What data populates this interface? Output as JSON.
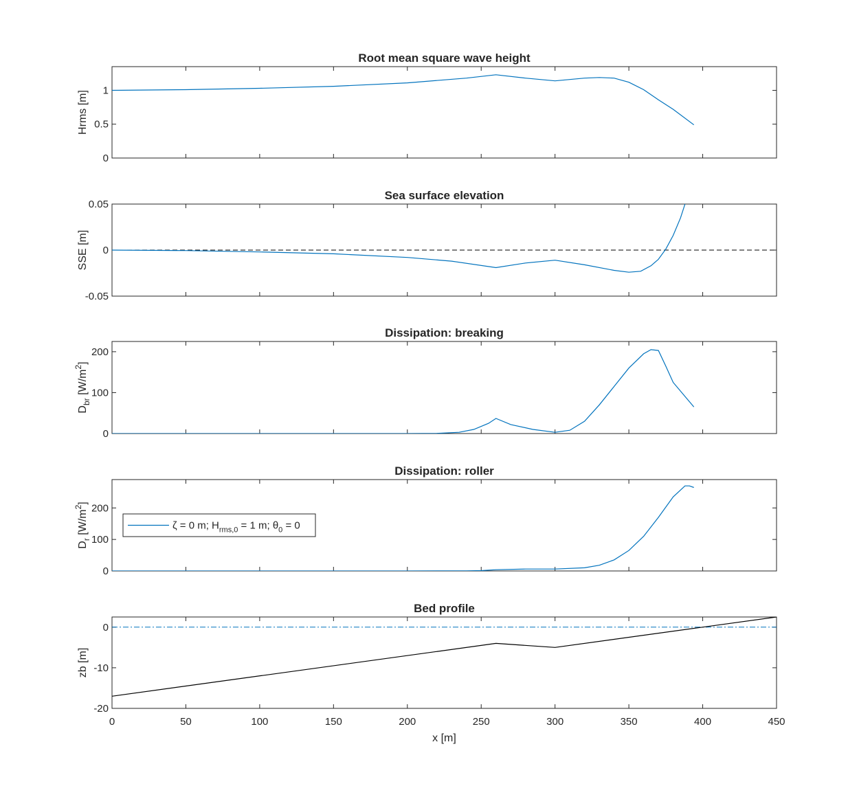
{
  "colors": {
    "series": "#0072BD",
    "bed": "#000000",
    "zero_ref": "#000000",
    "axis": "#262626"
  },
  "chart_data": [
    {
      "type": "line",
      "title": "Root mean square wave height",
      "xlabel": "",
      "ylabel": "Hrms [m]",
      "xlim": [
        0,
        450
      ],
      "ylim": [
        0,
        1.35
      ],
      "xticks": [
        0,
        50,
        100,
        150,
        200,
        250,
        300,
        350,
        400,
        450
      ],
      "yticks": [
        {
          "v": 0,
          "label": "0"
        },
        {
          "v": 0.5,
          "label": "0.5"
        },
        {
          "v": 1,
          "label": "1"
        }
      ],
      "show_xtick_labels": false,
      "series": [
        {
          "x": [
            0,
            50,
            100,
            150,
            200,
            240,
            260,
            280,
            300,
            320,
            330,
            340,
            350,
            360,
            370,
            380,
            394
          ],
          "y": [
            1.0,
            1.01,
            1.03,
            1.06,
            1.11,
            1.18,
            1.23,
            1.18,
            1.14,
            1.18,
            1.19,
            1.18,
            1.12,
            1.01,
            0.86,
            0.72,
            0.49
          ],
          "color": "#0072BD",
          "dash": "solid"
        }
      ]
    },
    {
      "type": "line",
      "title": "Sea surface elevation",
      "xlabel": "",
      "ylabel": "SSE [m]",
      "xlim": [
        0,
        450
      ],
      "ylim": [
        -0.05,
        0.05
      ],
      "xticks": [
        0,
        50,
        100,
        150,
        200,
        250,
        300,
        350,
        400,
        450
      ],
      "yticks": [
        {
          "v": -0.05,
          "label": "-0.05"
        },
        {
          "v": 0,
          "label": "0"
        },
        {
          "v": 0.05,
          "label": "0.05"
        }
      ],
      "show_xtick_labels": false,
      "reference_line": {
        "y": 0,
        "color": "#000000",
        "dash": "dashed"
      },
      "series": [
        {
          "x": [
            0,
            50,
            100,
            150,
            200,
            230,
            260,
            280,
            300,
            320,
            340,
            350,
            358,
            365,
            370,
            375,
            380,
            385,
            388
          ],
          "y": [
            0,
            -0.0005,
            -0.002,
            -0.004,
            -0.008,
            -0.012,
            -0.019,
            -0.014,
            -0.011,
            -0.016,
            -0.022,
            -0.024,
            -0.023,
            -0.017,
            -0.01,
            0.001,
            0.016,
            0.035,
            0.05
          ],
          "color": "#0072BD",
          "dash": "solid"
        }
      ]
    },
    {
      "type": "line",
      "title": "Dissipation: breaking",
      "xlabel": "",
      "ylabel": "D",
      "ylabel_sub": "br",
      "ylabel_rest": " [W/m",
      "ylabel_sup": "2",
      "ylabel_end": "]",
      "xlim": [
        0,
        450
      ],
      "ylim": [
        0,
        225
      ],
      "xticks": [
        0,
        50,
        100,
        150,
        200,
        250,
        300,
        350,
        400,
        450
      ],
      "yticks": [
        {
          "v": 0,
          "label": "0"
        },
        {
          "v": 100,
          "label": "100"
        },
        {
          "v": 200,
          "label": "200"
        }
      ],
      "show_xtick_labels": false,
      "series": [
        {
          "x": [
            0,
            100,
            200,
            220,
            235,
            245,
            255,
            260,
            270,
            285,
            300,
            310,
            320,
            330,
            340,
            350,
            360,
            365,
            370,
            375,
            380,
            387,
            394
          ],
          "y": [
            0,
            0,
            0,
            0.5,
            3,
            10,
            25,
            37,
            22,
            10,
            3,
            8,
            30,
            70,
            115,
            160,
            195,
            205,
            203,
            165,
            125,
            95,
            65
          ],
          "color": "#0072BD",
          "dash": "solid"
        }
      ]
    },
    {
      "type": "line",
      "title": "Dissipation: roller",
      "xlabel": "",
      "ylabel": "D",
      "ylabel_sub": "r",
      "ylabel_rest": " [W/m",
      "ylabel_sup": "2",
      "ylabel_end": "]",
      "xlim": [
        0,
        450
      ],
      "ylim": [
        0,
        290
      ],
      "xticks": [
        0,
        50,
        100,
        150,
        200,
        250,
        300,
        350,
        400,
        450
      ],
      "yticks": [
        {
          "v": 0,
          "label": "0"
        },
        {
          "v": 100,
          "label": "100"
        },
        {
          "v": 200,
          "label": "200"
        }
      ],
      "show_xtick_labels": false,
      "legend": {
        "placement": "middle-left",
        "prefix": "ζ = 0 m; H",
        "sub1": "rms,0",
        "middle": " = 1 m; θ",
        "sub2": "0",
        "suffix": " = 0"
      },
      "series": [
        {
          "x": [
            0,
            100,
            200,
            240,
            250,
            260,
            280,
            300,
            320,
            330,
            340,
            350,
            360,
            370,
            380,
            388,
            391,
            394
          ],
          "y": [
            0,
            0,
            0,
            0.5,
            1,
            4,
            6,
            6,
            10,
            18,
            35,
            65,
            110,
            170,
            235,
            270,
            270,
            265
          ],
          "color": "#0072BD",
          "dash": "solid"
        }
      ]
    },
    {
      "type": "line",
      "title": "Bed profile",
      "xlabel": "x [m]",
      "ylabel": "zb [m]",
      "xlim": [
        0,
        450
      ],
      "ylim": [
        -20,
        2.5
      ],
      "xticks": [
        0,
        50,
        100,
        150,
        200,
        250,
        300,
        350,
        400,
        450
      ],
      "yticks": [
        {
          "v": -20,
          "label": "-20"
        },
        {
          "v": -10,
          "label": "-10"
        },
        {
          "v": 0,
          "label": "0"
        }
      ],
      "show_xtick_labels": true,
      "xtick_labels": [
        "0",
        "50",
        "100",
        "150",
        "200",
        "250",
        "300",
        "350",
        "400",
        "450"
      ],
      "reference_line": {
        "y": 0,
        "color": "#0072BD",
        "dash": "dashdot"
      },
      "series": [
        {
          "x": [
            0,
            260,
            300,
            450
          ],
          "y": [
            -17,
            -4,
            -5,
            2.5
          ],
          "color": "#000000",
          "dash": "solid"
        }
      ]
    }
  ]
}
